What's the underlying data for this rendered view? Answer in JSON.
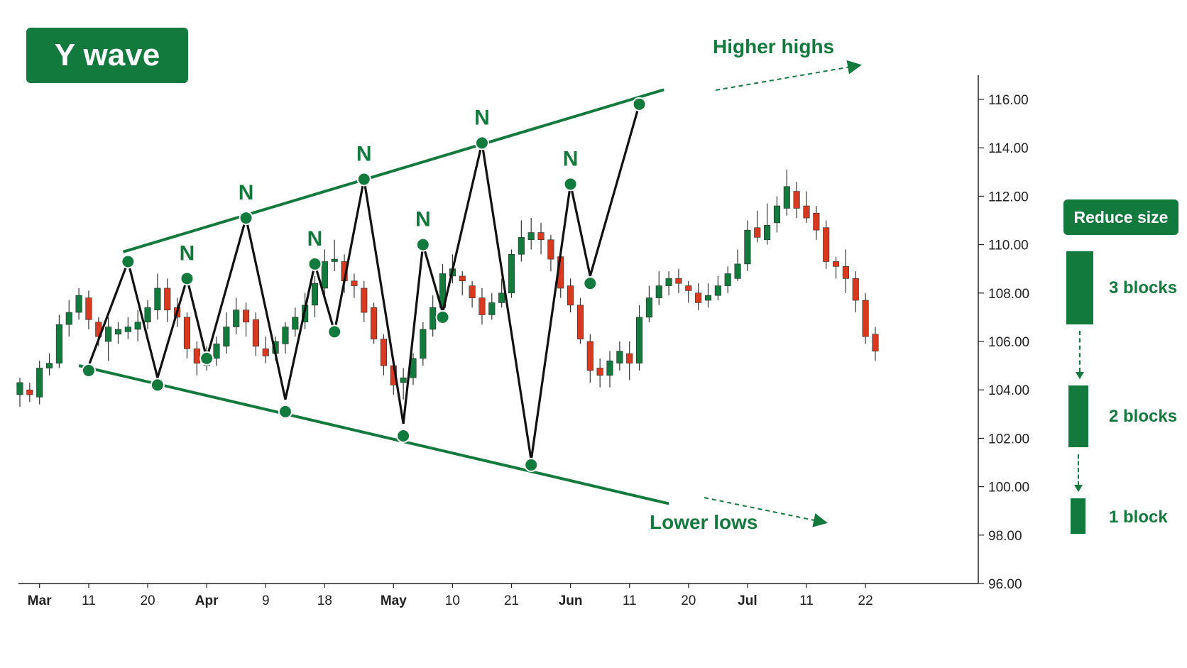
{
  "title": "Y wave",
  "colors": {
    "up": "#137a3e",
    "down": "#d93a1f",
    "accent": "#137a3e",
    "wave": "#111111"
  },
  "annotations": {
    "higher_highs": "Higher highs",
    "lower_lows": "Lower lows",
    "peak_marker": "N"
  },
  "legend": {
    "title": "Reduce size",
    "items": [
      {
        "label": "3 blocks",
        "blocks": 3
      },
      {
        "label": "2 blocks",
        "blocks": 2
      },
      {
        "label": "1 block",
        "blocks": 1
      }
    ]
  },
  "chart_data": {
    "type": "candlestick",
    "ylim": [
      96,
      116.5
    ],
    "yticks": [
      "116.00",
      "114.00",
      "112.00",
      "110.00",
      "108.00",
      "106.00",
      "104.00",
      "102.00",
      "100.00",
      "98.00",
      "96.00"
    ],
    "xticks": [
      {
        "label": "Mar",
        "bold": true,
        "i": 2
      },
      {
        "label": "11",
        "bold": false,
        "i": 7
      },
      {
        "label": "20",
        "bold": false,
        "i": 13
      },
      {
        "label": "Apr",
        "bold": true,
        "i": 19
      },
      {
        "label": "9",
        "bold": false,
        "i": 25
      },
      {
        "label": "18",
        "bold": false,
        "i": 31
      },
      {
        "label": "May",
        "bold": true,
        "i": 38
      },
      {
        "label": "10",
        "bold": false,
        "i": 44
      },
      {
        "label": "21",
        "bold": false,
        "i": 50
      },
      {
        "label": "Jun",
        "bold": true,
        "i": 56
      },
      {
        "label": "11",
        "bold": false,
        "i": 62
      },
      {
        "label": "20",
        "bold": false,
        "i": 68
      },
      {
        "label": "Jul",
        "bold": true,
        "i": 74
      },
      {
        "label": "11",
        "bold": false,
        "i": 80
      },
      {
        "label": "22",
        "bold": false,
        "i": 86
      }
    ],
    "candles": [
      [
        103.8,
        104.3,
        103.3,
        104.5
      ],
      [
        104.0,
        103.8,
        103.5,
        104.3
      ],
      [
        103.7,
        104.9,
        103.4,
        105.2
      ],
      [
        104.9,
        105.1,
        104.6,
        105.5
      ],
      [
        105.1,
        106.7,
        104.9,
        107.1
      ],
      [
        106.7,
        107.2,
        106.2,
        107.7
      ],
      [
        107.2,
        107.9,
        106.9,
        108.2
      ],
      [
        107.8,
        106.9,
        106.5,
        108.1
      ],
      [
        106.8,
        106.2,
        105.8,
        107.0
      ],
      [
        106.0,
        106.6,
        105.2,
        107.0
      ],
      [
        106.3,
        106.5,
        105.9,
        106.8
      ],
      [
        106.4,
        106.6,
        106.1,
        107.0
      ],
      [
        106.5,
        106.8,
        106.0,
        107.3
      ],
      [
        106.8,
        107.4,
        106.5,
        107.7
      ],
      [
        107.3,
        108.2,
        106.9,
        108.8
      ],
      [
        108.2,
        107.3,
        106.8,
        108.6
      ],
      [
        107.4,
        107.0,
        106.6,
        107.8
      ],
      [
        107.0,
        105.7,
        105.3,
        107.2
      ],
      [
        105.7,
        105.1,
        104.6,
        106.0
      ],
      [
        105.0,
        105.5,
        104.8,
        105.8
      ],
      [
        105.3,
        105.9,
        105.0,
        106.2
      ],
      [
        105.8,
        106.6,
        105.5,
        107.2
      ],
      [
        106.6,
        107.3,
        106.3,
        107.8
      ],
      [
        107.3,
        106.8,
        106.2,
        107.6
      ],
      [
        106.9,
        105.8,
        105.4,
        107.2
      ],
      [
        105.7,
        105.4,
        105.1,
        106.2
      ],
      [
        105.5,
        106.0,
        105.2,
        106.2
      ],
      [
        105.9,
        106.6,
        105.5,
        106.8
      ],
      [
        106.5,
        107.0,
        106.2,
        107.4
      ],
      [
        106.8,
        107.5,
        106.5,
        108.0
      ],
      [
        107.5,
        108.4,
        107.0,
        108.7
      ],
      [
        108.2,
        109.3,
        107.9,
        109.8
      ],
      [
        109.3,
        109.4,
        108.9,
        110.2
      ],
      [
        109.3,
        108.5,
        108.0,
        109.6
      ],
      [
        108.5,
        108.3,
        107.8,
        108.8
      ],
      [
        108.2,
        107.2,
        106.8,
        108.5
      ],
      [
        107.4,
        106.1,
        105.9,
        107.6
      ],
      [
        106.1,
        105.0,
        104.6,
        106.3
      ],
      [
        105.0,
        104.2,
        103.8,
        105.3
      ],
      [
        104.3,
        104.5,
        103.6,
        104.9
      ],
      [
        104.5,
        105.3,
        104.2,
        105.5
      ],
      [
        105.3,
        106.5,
        105.0,
        106.8
      ],
      [
        106.5,
        107.4,
        106.2,
        107.9
      ],
      [
        107.4,
        108.8,
        107.0,
        109.2
      ],
      [
        108.7,
        109.0,
        108.4,
        109.6
      ],
      [
        108.7,
        108.5,
        107.9,
        108.9
      ],
      [
        108.3,
        107.8,
        107.4,
        108.5
      ],
      [
        107.8,
        107.1,
        106.7,
        108.2
      ],
      [
        107.1,
        107.6,
        106.9,
        108.0
      ],
      [
        107.6,
        108.0,
        107.4,
        108.6
      ],
      [
        108.0,
        109.6,
        107.8,
        109.8
      ],
      [
        109.6,
        110.3,
        109.3,
        111.0
      ],
      [
        110.2,
        110.5,
        109.8,
        111.1
      ],
      [
        110.5,
        110.2,
        109.6,
        110.9
      ],
      [
        110.2,
        109.4,
        108.9,
        110.4
      ],
      [
        109.5,
        108.2,
        107.8,
        109.8
      ],
      [
        108.3,
        107.5,
        107.2,
        108.6
      ],
      [
        107.5,
        106.1,
        105.9,
        107.8
      ],
      [
        106.0,
        104.8,
        104.3,
        106.3
      ],
      [
        104.9,
        104.6,
        104.1,
        105.3
      ],
      [
        104.6,
        105.2,
        104.1,
        105.6
      ],
      [
        105.1,
        105.6,
        104.8,
        106.0
      ],
      [
        105.5,
        105.1,
        104.4,
        106.0
      ],
      [
        105.1,
        107.0,
        104.8,
        107.5
      ],
      [
        107.0,
        107.8,
        106.8,
        108.3
      ],
      [
        107.8,
        108.3,
        107.5,
        108.9
      ],
      [
        108.3,
        108.6,
        107.9,
        108.9
      ],
      [
        108.6,
        108.4,
        108.0,
        109.0
      ],
      [
        108.3,
        108.1,
        107.6,
        108.5
      ],
      [
        108.0,
        107.6,
        107.3,
        108.4
      ],
      [
        107.7,
        107.9,
        107.4,
        108.4
      ],
      [
        107.9,
        108.3,
        107.7,
        108.7
      ],
      [
        108.3,
        108.8,
        108.0,
        109.1
      ],
      [
        108.6,
        109.2,
        108.5,
        109.8
      ],
      [
        109.2,
        110.6,
        108.9,
        111.0
      ],
      [
        110.7,
        110.3,
        110.1,
        111.4
      ],
      [
        110.2,
        110.8,
        110.0,
        111.7
      ],
      [
        110.9,
        111.6,
        110.5,
        112.0
      ],
      [
        111.5,
        112.4,
        111.2,
        113.1
      ],
      [
        112.2,
        111.5,
        111.1,
        112.6
      ],
      [
        111.6,
        111.1,
        110.9,
        112.2
      ],
      [
        111.3,
        110.6,
        110.2,
        111.6
      ],
      [
        110.7,
        109.3,
        109.0,
        111.0
      ],
      [
        109.3,
        109.1,
        108.6,
        109.5
      ],
      [
        109.1,
        108.6,
        108.0,
        109.8
      ],
      [
        108.6,
        107.7,
        107.2,
        108.9
      ],
      [
        107.7,
        106.2,
        105.9,
        108.0
      ],
      [
        106.3,
        105.6,
        105.2,
        106.6
      ]
    ],
    "wave": [
      [
        7,
        105.0
      ],
      [
        11,
        109.3
      ],
      [
        14,
        104.5
      ],
      [
        17,
        108.6
      ],
      [
        19,
        105.3
      ],
      [
        23,
        111.1
      ],
      [
        27,
        103.6
      ],
      [
        30,
        109.2
      ],
      [
        32,
        106.4
      ],
      [
        35,
        112.7
      ],
      [
        39,
        102.6
      ],
      [
        41,
        110.0
      ],
      [
        43,
        107.2
      ],
      [
        47,
        114.2
      ],
      [
        52,
        101.1
      ],
      [
        56,
        112.5
      ],
      [
        58,
        108.7
      ],
      [
        63,
        115.8
      ]
    ],
    "highs": [
      [
        11,
        109.3
      ],
      [
        17,
        108.6
      ],
      [
        23,
        111.1
      ],
      [
        30,
        109.2
      ],
      [
        35,
        112.7
      ],
      [
        41,
        110.0
      ],
      [
        47,
        114.2
      ],
      [
        56,
        112.5
      ],
      [
        63,
        115.8
      ]
    ],
    "lows": [
      [
        7,
        104.8
      ],
      [
        14,
        104.2
      ],
      [
        19,
        105.3
      ],
      [
        27,
        103.1
      ],
      [
        32,
        106.4
      ],
      [
        39,
        102.1
      ],
      [
        43,
        107.0
      ],
      [
        52,
        100.9
      ],
      [
        58,
        108.4
      ]
    ],
    "n_markers": [
      17,
      23,
      30,
      35,
      41,
      47,
      56
    ]
  }
}
